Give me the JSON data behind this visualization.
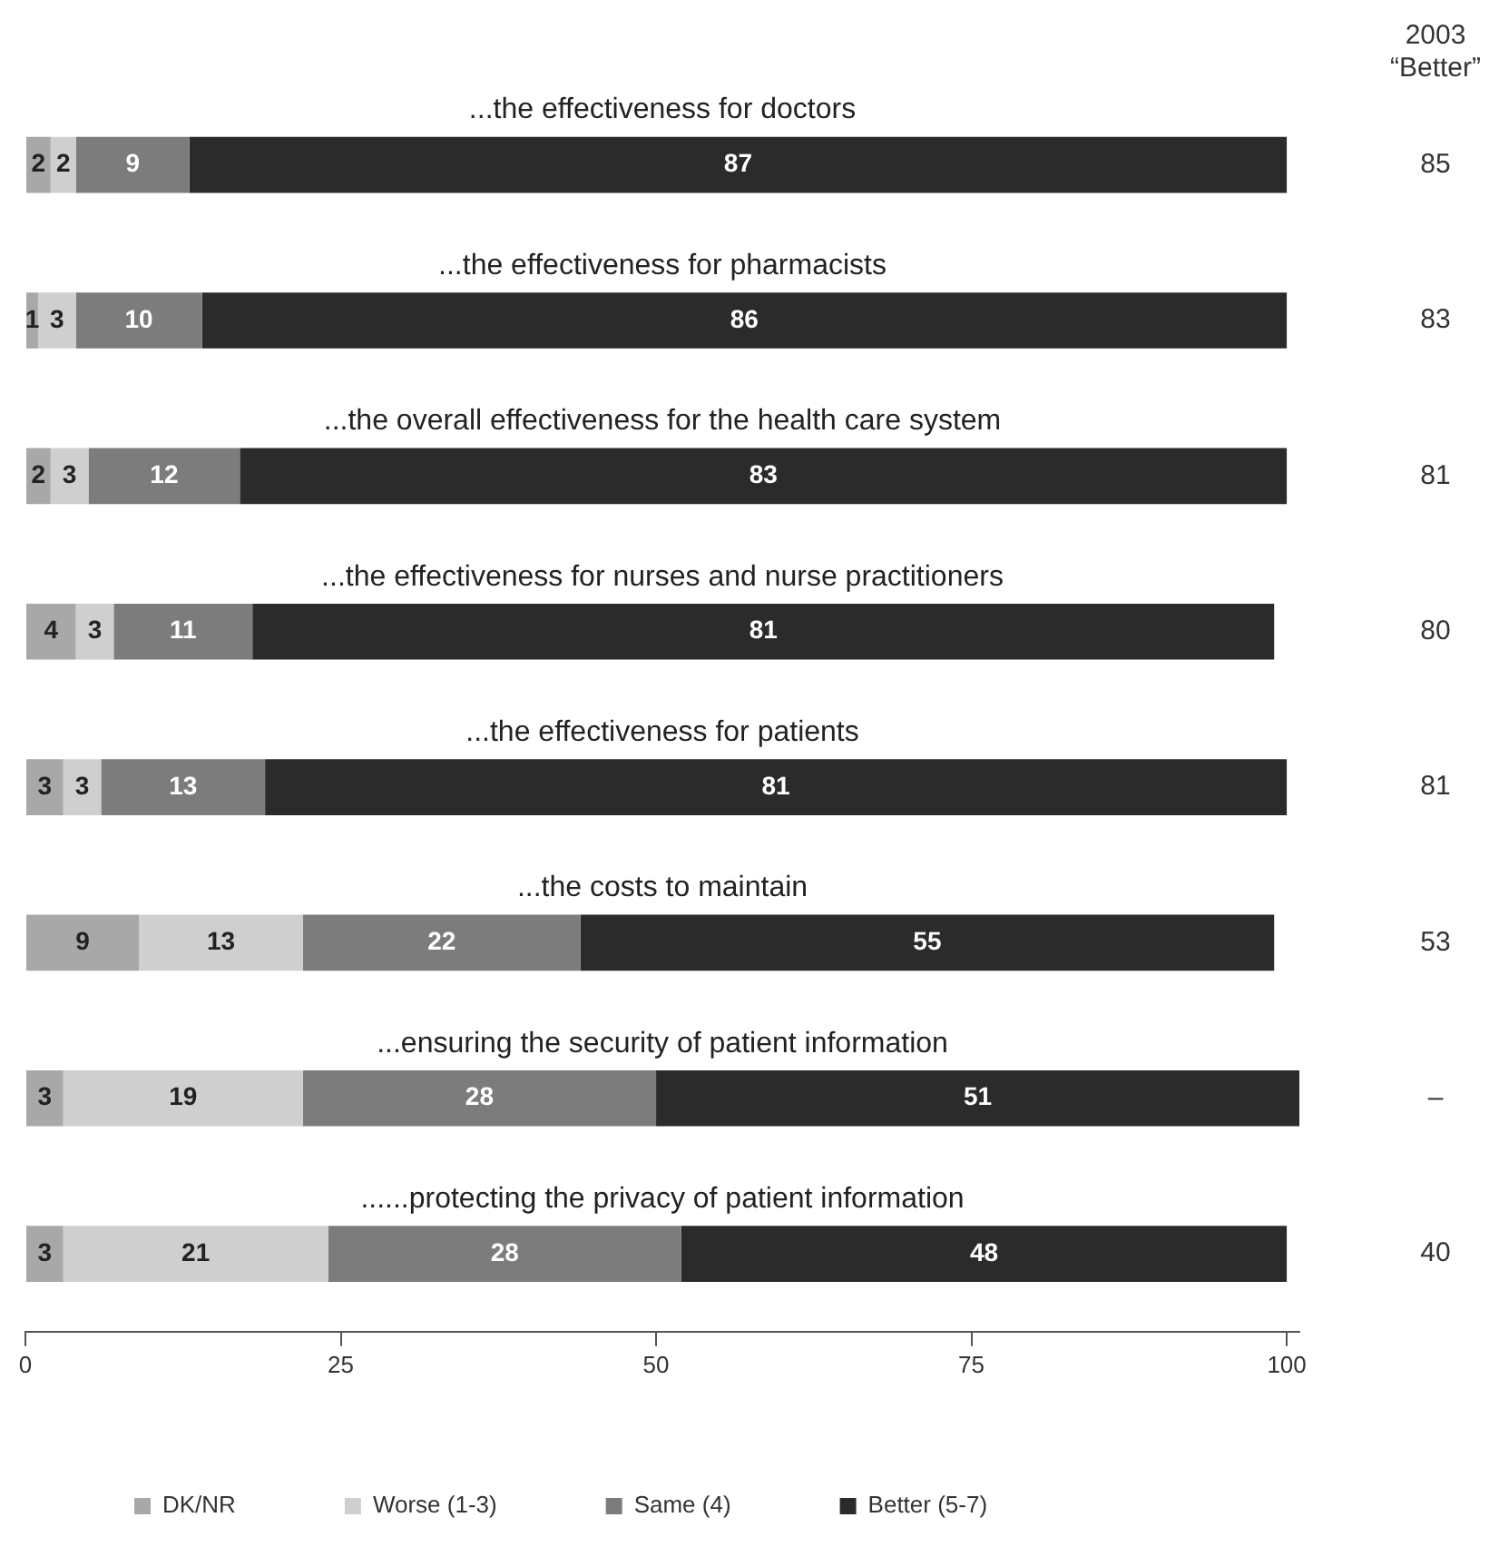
{
  "chart_data": {
    "type": "bar",
    "orientation": "horizontal",
    "stacked": true,
    "data_labels": true,
    "grid": false,
    "legend": "bottom",
    "categories": [
      "...the effectiveness for doctors",
      "...the effectiveness for pharmacists",
      "...the overall effectiveness for the health care system",
      "...the effectiveness for nurses and nurse practitioners",
      "...the effectiveness for patients",
      "...the costs to maintain",
      "...ensuring the security of patient information",
      "......protecting the privacy of patient information"
    ],
    "series": [
      {
        "name": "DK/NR",
        "color": "#a8a8a8",
        "values": [
          2,
          1,
          2,
          4,
          3,
          9,
          3,
          3
        ]
      },
      {
        "name": "Worse (1-3)",
        "color": "#cfcfcf",
        "values": [
          2,
          3,
          3,
          3,
          3,
          13,
          19,
          21
        ]
      },
      {
        "name": "Same (4)",
        "color": "#7c7c7c",
        "values": [
          9,
          10,
          12,
          11,
          13,
          22,
          28,
          28
        ]
      },
      {
        "name": "Better (5-7)",
        "color": "#2b2b2b",
        "values": [
          87,
          86,
          83,
          81,
          81,
          55,
          51,
          48
        ]
      }
    ],
    "xlim": [
      0,
      101
    ],
    "xticks": [
      0,
      25,
      50,
      75,
      100
    ],
    "annotations": [
      "2003\n“Better”",
      "85",
      "83",
      "81",
      "80",
      "81",
      "53",
      "–",
      "40"
    ]
  }
}
